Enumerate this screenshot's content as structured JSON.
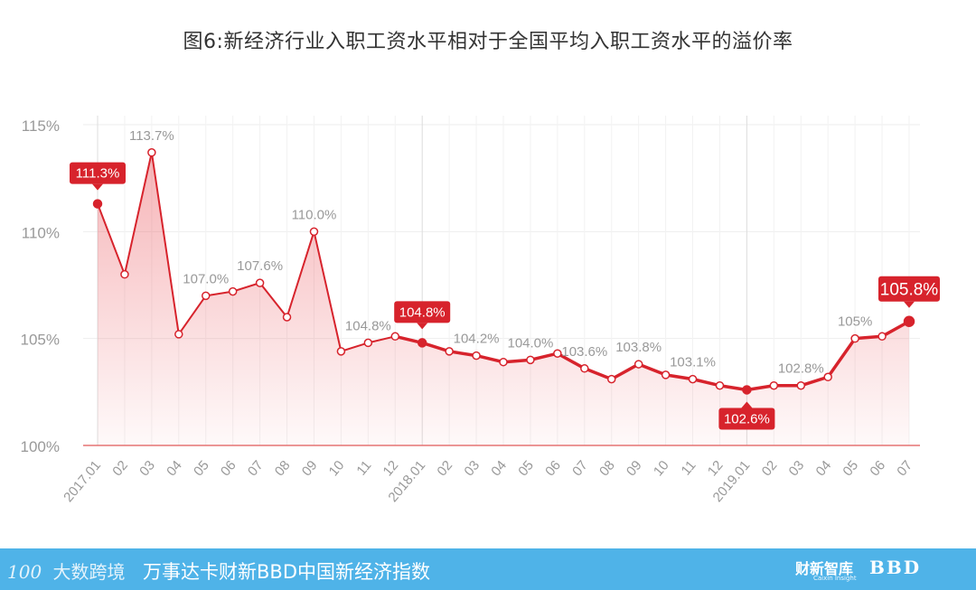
{
  "chart_data": {
    "type": "area",
    "title": "图6:新经济行业入职工资水平相对于全国平均入职工资水平的溢价率",
    "x": [
      "2017.01",
      "02",
      "03",
      "04",
      "05",
      "06",
      "07",
      "08",
      "09",
      "10",
      "11",
      "12",
      "2018.01",
      "02",
      "03",
      "04",
      "05",
      "06",
      "07",
      "08",
      "09",
      "10",
      "11",
      "12",
      "2019.01",
      "02",
      "03",
      "04",
      "05",
      "06",
      "07"
    ],
    "series": [
      {
        "values": [
          111.3,
          108.0,
          113.7,
          105.2,
          107.0,
          107.2,
          107.6,
          106.0,
          110.0,
          104.4,
          104.8,
          105.1,
          104.8,
          104.4,
          104.2,
          103.9,
          104.0,
          104.3,
          103.6,
          103.1,
          103.8,
          103.3,
          103.1,
          102.8,
          102.6,
          102.8,
          102.8,
          103.2,
          105.0,
          105.1,
          105.8
        ]
      }
    ],
    "yticks": [
      "100%",
      "105%",
      "110%",
      "115%"
    ],
    "ylim": [
      100,
      115
    ],
    "grid": true,
    "value_labels": [
      {
        "index": 2,
        "text": "113.7%"
      },
      {
        "index": 4,
        "text": "107.0%"
      },
      {
        "index": 6,
        "text": "107.6%"
      },
      {
        "index": 8,
        "text": "110.0%"
      },
      {
        "index": 10,
        "text": "104.8%"
      },
      {
        "index": 14,
        "text": "104.2%"
      },
      {
        "index": 16,
        "text": "104.0%"
      },
      {
        "index": 18,
        "text": "103.6%"
      },
      {
        "index": 20,
        "text": "103.8%"
      },
      {
        "index": 22,
        "text": "103.1%"
      },
      {
        "index": 26,
        "text": "102.8%"
      },
      {
        "index": 28,
        "text": "105%"
      }
    ],
    "callouts": [
      {
        "index": 0,
        "text": "111.3%"
      },
      {
        "index": 12,
        "text": "104.8%"
      },
      {
        "index": 24,
        "text": "102.6%"
      },
      {
        "index": 30,
        "text": "105.8%"
      }
    ],
    "colors": {
      "line": "#d7232c",
      "fill": "#e8434b",
      "grid": "#eeeeee",
      "baseline": "#e57373",
      "callout": "#d7232c"
    }
  },
  "footer": {
    "brand_mark": "100",
    "brand_text": "大数跨境",
    "index_name": "万事达卡财新BBD中国新经济指数",
    "logo_caixin": "财新智库",
    "logo_caixin_sub": "Caixin Insight",
    "logo_bbd": "BBD"
  }
}
